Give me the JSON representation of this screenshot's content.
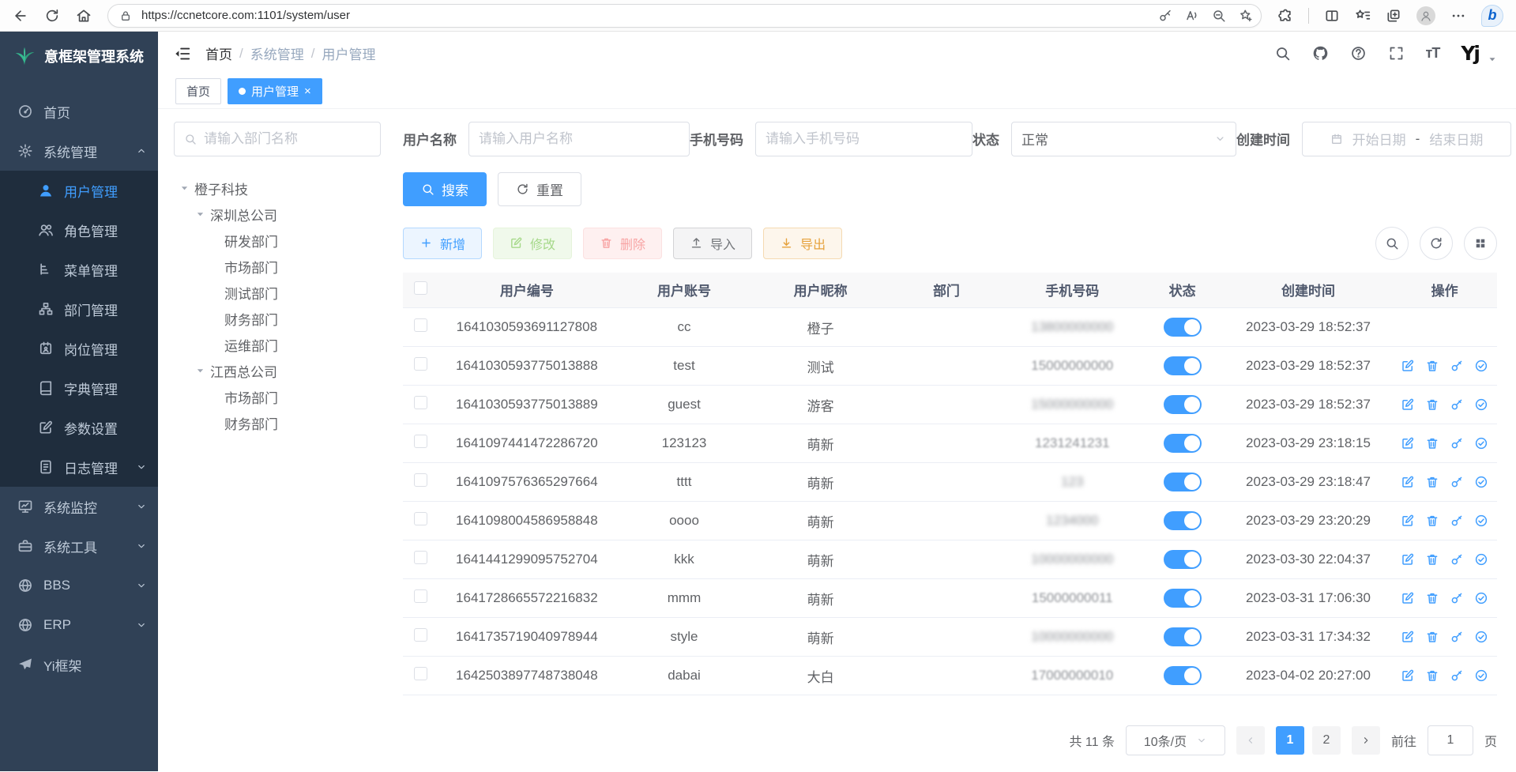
{
  "browser": {
    "url": "https://ccnetcore.com:1101/system/user"
  },
  "sidebar": {
    "title": "意框架管理系统",
    "items": [
      {
        "label": "首页",
        "icon": "dashboard"
      },
      {
        "label": "系统管理",
        "icon": "gear",
        "expanded": true,
        "children": [
          {
            "label": "用户管理",
            "icon": "user",
            "active": true
          },
          {
            "label": "角色管理",
            "icon": "users"
          },
          {
            "label": "菜单管理",
            "icon": "mtree"
          },
          {
            "label": "部门管理",
            "icon": "org"
          },
          {
            "label": "岗位管理",
            "icon": "badge"
          },
          {
            "label": "字典管理",
            "icon": "dict"
          },
          {
            "label": "参数设置",
            "icon": "editsq"
          },
          {
            "label": "日志管理",
            "icon": "logdoc",
            "hasArrow": true
          }
        ]
      },
      {
        "label": "系统监控",
        "icon": "monitor",
        "hasArrow": true
      },
      {
        "label": "系统工具",
        "icon": "toolbox",
        "hasArrow": true
      },
      {
        "label": "BBS",
        "icon": "globe",
        "hasArrow": true
      },
      {
        "label": "ERP",
        "icon": "globe",
        "hasArrow": true
      },
      {
        "label": "Yi框架",
        "icon": "plane"
      }
    ]
  },
  "header": {
    "breadcrumb": [
      "首页",
      "系统管理",
      "用户管理"
    ]
  },
  "tabs": [
    {
      "label": "首页",
      "active": false
    },
    {
      "label": "用户管理",
      "active": true
    }
  ],
  "filters": {
    "dept_placeholder": "请输入部门名称",
    "username_label": "用户名称",
    "username_placeholder": "请输入用户名称",
    "phone_label": "手机号码",
    "phone_placeholder": "请输入手机号码",
    "status_label": "状态",
    "status_value": "正常",
    "created_label": "创建时间",
    "date_start_placeholder": "开始日期",
    "date_separator": "-",
    "date_end_placeholder": "结束日期",
    "search_label": "搜索",
    "reset_label": "重置"
  },
  "tree": {
    "nodes": [
      {
        "label": "橙子科技",
        "depth": 0,
        "expandable": true
      },
      {
        "label": "深圳总公司",
        "depth": 1,
        "expandable": true
      },
      {
        "label": "研发部门",
        "depth": 2
      },
      {
        "label": "市场部门",
        "depth": 2
      },
      {
        "label": "测试部门",
        "depth": 2
      },
      {
        "label": "财务部门",
        "depth": 2
      },
      {
        "label": "运维部门",
        "depth": 2
      },
      {
        "label": "江西总公司",
        "depth": 1,
        "expandable": true
      },
      {
        "label": "市场部门",
        "depth": 2
      },
      {
        "label": "财务部门",
        "depth": 2
      }
    ]
  },
  "toolbar": {
    "buttons": [
      {
        "label": "新增",
        "icon": "plus",
        "style": "blue"
      },
      {
        "label": "修改",
        "icon": "editsq",
        "style": "green"
      },
      {
        "label": "删除",
        "icon": "trash",
        "style": "red"
      },
      {
        "label": "导入",
        "icon": "import",
        "style": "info"
      },
      {
        "label": "导出",
        "icon": "export",
        "style": "warning"
      }
    ]
  },
  "table": {
    "columns": [
      "用户编号",
      "用户账号",
      "用户昵称",
      "部门",
      "手机号码",
      "状态",
      "创建时间",
      "操作"
    ],
    "rows": [
      {
        "id": "1641030593691127808",
        "account": "cc",
        "nickname": "橙子",
        "dept": "",
        "phone": "13800000000",
        "phone_blur": "heavy",
        "status": true,
        "created": "2023-03-29 18:52:37",
        "show_ops": false
      },
      {
        "id": "1641030593775013888",
        "account": "test",
        "nickname": "测试",
        "dept": "",
        "phone": "15000000000",
        "phone_blur": "light",
        "status": true,
        "created": "2023-03-29 18:52:37",
        "show_ops": true
      },
      {
        "id": "1641030593775013889",
        "account": "guest",
        "nickname": "游客",
        "dept": "",
        "phone": "15000000000",
        "phone_blur": "heavy",
        "status": true,
        "created": "2023-03-29 18:52:37",
        "show_ops": true
      },
      {
        "id": "1641097441472286720",
        "account": "123123",
        "nickname": "萌新",
        "dept": "",
        "phone": "1231241231",
        "phone_blur": "light",
        "status": true,
        "created": "2023-03-29 23:18:15",
        "show_ops": true
      },
      {
        "id": "1641097576365297664",
        "account": "tttt",
        "nickname": "萌新",
        "dept": "",
        "phone": "123",
        "phone_blur": "heavy",
        "status": true,
        "created": "2023-03-29 23:18:47",
        "show_ops": true
      },
      {
        "id": "1641098004586958848",
        "account": "oooo",
        "nickname": "萌新",
        "dept": "",
        "phone": "1234000",
        "phone_blur": "heavy",
        "status": true,
        "created": "2023-03-29 23:20:29",
        "show_ops": true
      },
      {
        "id": "1641441299095752704",
        "account": "kkk",
        "nickname": "萌新",
        "dept": "",
        "phone": "10000000000",
        "phone_blur": "heavy",
        "status": true,
        "created": "2023-03-30 22:04:37",
        "show_ops": true
      },
      {
        "id": "1641728665572216832",
        "account": "mmm",
        "nickname": "萌新",
        "dept": "",
        "phone": "15000000011",
        "phone_blur": "light",
        "status": true,
        "created": "2023-03-31 17:06:30",
        "show_ops": true
      },
      {
        "id": "1641735719040978944",
        "account": "style",
        "nickname": "萌新",
        "dept": "",
        "phone": "10000000000",
        "phone_blur": "heavy",
        "status": true,
        "created": "2023-03-31 17:34:32",
        "show_ops": true
      },
      {
        "id": "1642503897748738048",
        "account": "dabai",
        "nickname": "大白",
        "dept": "",
        "phone": "17000000010",
        "phone_blur": "light",
        "status": true,
        "created": "2023-04-02 20:27:00",
        "show_ops": true
      }
    ],
    "op_icons": [
      {
        "icon": "editsq",
        "name": "edit-user-button"
      },
      {
        "icon": "trash",
        "name": "delete-user-button"
      },
      {
        "icon": "opskey",
        "name": "reset-password-button"
      },
      {
        "icon": "opscheck",
        "name": "assign-role-button"
      }
    ]
  },
  "pagination": {
    "total": "共 11 条",
    "page_size": "10条/页",
    "pages": [
      "1",
      "2"
    ],
    "active_page": "1",
    "goto_label": "前往",
    "goto_value": "1",
    "unit_label": "页"
  },
  "colors": {
    "primary": "#409eff",
    "sidebar_bg": "#304156",
    "submenu_bg": "#1f2d3d"
  }
}
